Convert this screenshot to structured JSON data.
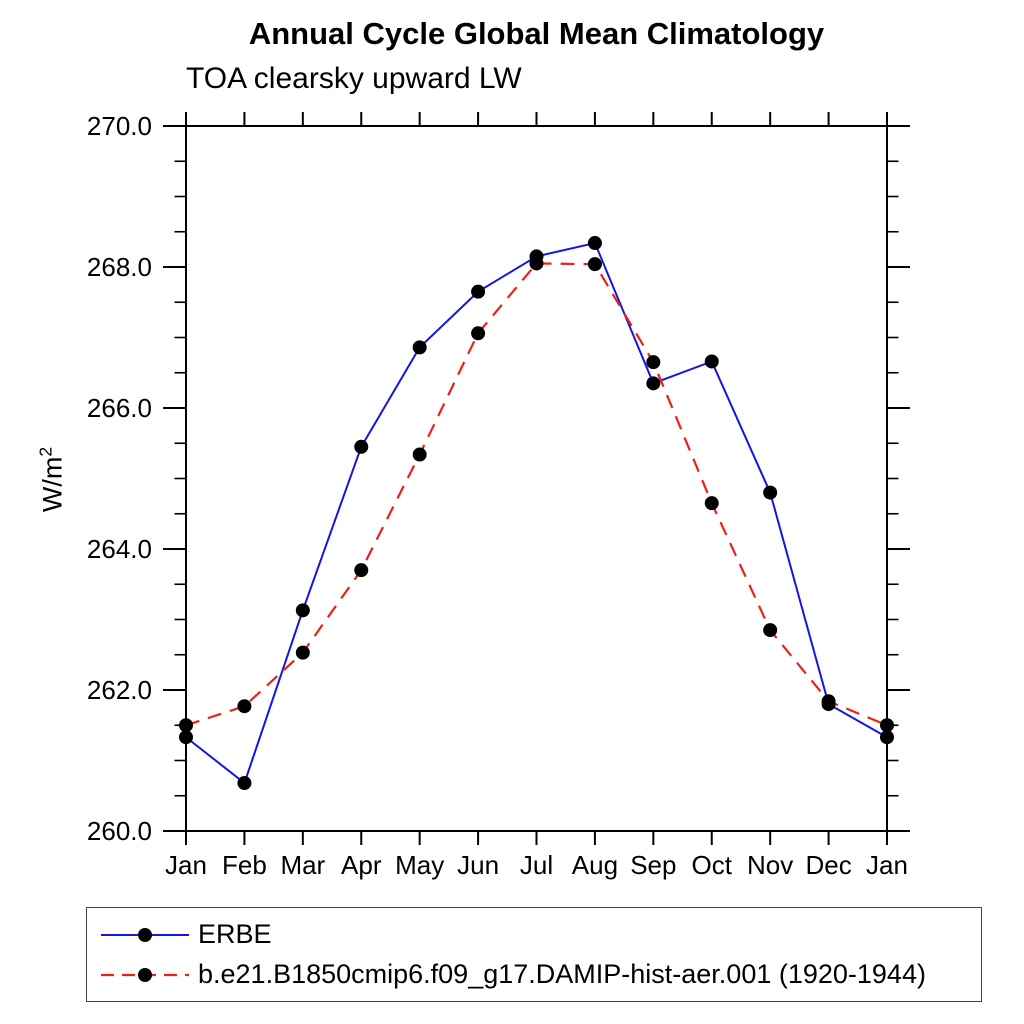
{
  "title": "Annual Cycle Global Mean Climatology",
  "subtitle": "TOA clearsky upward LW",
  "ylabel": {
    "base": "W/m",
    "sup": "2"
  },
  "colors": {
    "erbe_line": "#1414e6",
    "model_line": "#ee2015",
    "marker": "#000000",
    "axis": "#000000",
    "legend_border": "#444444",
    "background": "#ffffff"
  },
  "chart_data": {
    "type": "line",
    "title": "Annual Cycle Global Mean Climatology",
    "subtitle": "TOA clearsky upward LW",
    "xlabel": "",
    "ylabel": "W/m2",
    "ylim": [
      260.0,
      270.0
    ],
    "ytick_major": [
      260.0,
      262.0,
      264.0,
      266.0,
      268.0,
      270.0
    ],
    "ytick_major_labels": [
      "260.0",
      "262.0",
      "264.0",
      "266.0",
      "268.0",
      "270.0"
    ],
    "ytick_minor_step": 0.5,
    "grid": "off",
    "legend_position": "bottom-left-box",
    "categories": [
      "Jan",
      "Feb",
      "Mar",
      "Apr",
      "May",
      "Jun",
      "Jul",
      "Aug",
      "Sep",
      "Oct",
      "Nov",
      "Dec",
      "Jan"
    ],
    "series": [
      {
        "name": "ERBE",
        "style": "solid",
        "marker": "filled-circle",
        "values": [
          261.33,
          260.68,
          263.13,
          265.45,
          266.86,
          267.65,
          268.15,
          268.34,
          266.35,
          266.66,
          264.8,
          261.8,
          261.33
        ]
      },
      {
        "name": "b.e21.B1850cmip6.f09_g17.DAMIP-hist-aer.001 (1920-1944)",
        "style": "dashed",
        "marker": "filled-circle",
        "values": [
          261.5,
          261.77,
          262.53,
          263.7,
          265.34,
          267.06,
          268.05,
          268.04,
          266.65,
          264.65,
          262.85,
          261.84,
          261.5
        ]
      }
    ]
  }
}
